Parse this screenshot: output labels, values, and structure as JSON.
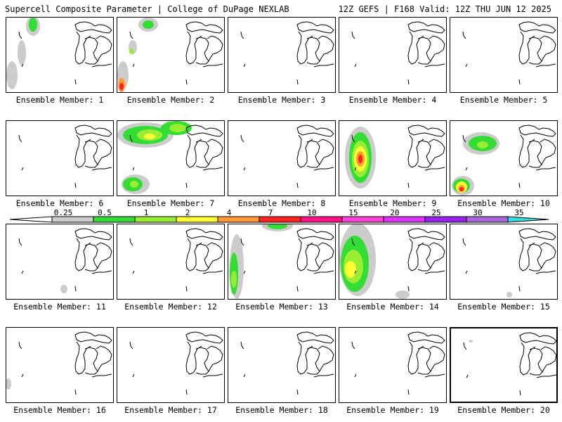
{
  "header": {
    "title_left": "Supercell Composite Parameter | College of DuPage NEXLAB",
    "title_right": "12Z GEFS | F168 Valid: 12Z THU JUN 12 2025"
  },
  "panels": [
    {
      "label": "Ensemble Member: 1"
    },
    {
      "label": "Ensemble Member: 2"
    },
    {
      "label": "Ensemble Member: 3"
    },
    {
      "label": "Ensemble Member: 4"
    },
    {
      "label": "Ensemble Member: 5"
    },
    {
      "label": "Ensemble Member: 6"
    },
    {
      "label": "Ensemble Member: 7"
    },
    {
      "label": "Ensemble Member: 8"
    },
    {
      "label": "Ensemble Member: 9"
    },
    {
      "label": "Ensemble Member: 10"
    },
    {
      "label": "Ensemble Member: 11"
    },
    {
      "label": "Ensemble Member: 12"
    },
    {
      "label": "Ensemble Member: 13"
    },
    {
      "label": "Ensemble Member: 14"
    },
    {
      "label": "Ensemble Member: 15"
    },
    {
      "label": "Ensemble Member: 16"
    },
    {
      "label": "Ensemble Member: 17"
    },
    {
      "label": "Ensemble Member: 18"
    },
    {
      "label": "Ensemble Member: 19"
    },
    {
      "label": "Ensemble Member: 20"
    }
  ],
  "colorbar": {
    "labels": [
      "0.25",
      "0.5",
      "1",
      "2",
      "4",
      "7",
      "10",
      "15",
      "20",
      "25",
      "30",
      "35"
    ],
    "colors": [
      "#cccccc",
      "#33dd33",
      "#99ee33",
      "#ffff33",
      "#ff9933",
      "#ff2222",
      "#ff1188",
      "#ff44dd",
      "#dd33ff",
      "#9922ee",
      "#aa66dd",
      "#33dddd"
    ]
  }
}
